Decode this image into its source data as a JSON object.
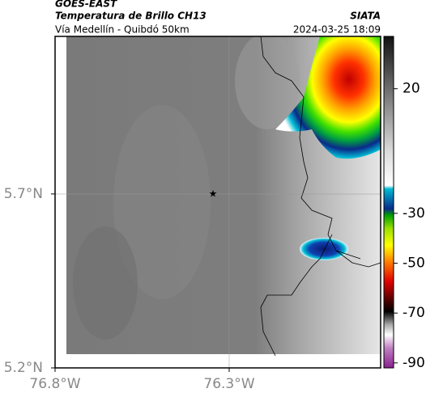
{
  "header": {
    "source": "GOES-EAST",
    "title": "Temperatura de Brillo CH13",
    "brand": "SIATA",
    "subtitle": "Vía Medellín - Quibdó 50km",
    "timestamp": "2024-03-25 18:09"
  },
  "map": {
    "xlim": [
      -76.8,
      -75.865
    ],
    "ylim": [
      5.2,
      6.153
    ],
    "xticks": [
      {
        "value": -76.8,
        "label": "76.8°W"
      },
      {
        "value": -76.3,
        "label": "76.3°W"
      }
    ],
    "yticks": [
      {
        "value": 5.2,
        "label": "5.2°N"
      },
      {
        "value": 5.7,
        "label": "5.7°N"
      }
    ]
  },
  "colorbar": {
    "lim": [
      -92,
      41
    ],
    "ticks": [
      20,
      -30,
      -50,
      -70,
      -90
    ]
  }
}
